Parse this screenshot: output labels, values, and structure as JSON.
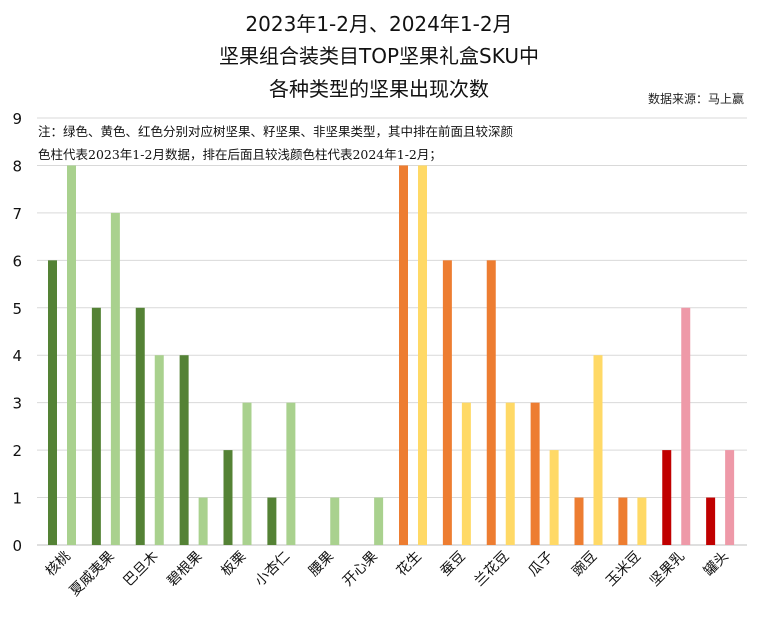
{
  "chart_data": {
    "type": "bar",
    "title": [
      "2023年1-2月、2024年1-2月",
      "坚果组合装类目TOP坚果礼盒SKU中",
      "各种类型的坚果出现次数"
    ],
    "source": "数据来源：马上赢",
    "note": [
      "注：绿色、黄色、红色分别对应树坚果、籽坚果、非坚果类型，其中排在前面且较深颜",
      "色柱代表2023年1-2月数据，排在后面且较浅颜色柱代表2024年1-2月；"
    ],
    "categories": [
      "核桃",
      "夏威夷果",
      "巴旦木",
      "碧根果",
      "板栗",
      "小杏仁",
      "腰果",
      "开心果",
      "花生",
      "蚕豆",
      "兰花豆",
      "瓜子",
      "豌豆",
      "玉米豆",
      "坚果乳",
      "罐头"
    ],
    "series": [
      {
        "values": [
          6,
          5,
          5,
          4,
          2,
          1,
          0,
          0,
          8,
          6,
          6,
          3,
          1,
          1,
          2,
          1
        ]
      },
      {
        "values": [
          8,
          7,
          4,
          1,
          3,
          3,
          1,
          1,
          8,
          3,
          3,
          2,
          4,
          1,
          5,
          2
        ]
      }
    ],
    "colors": {
      "dark": [
        "#548235",
        "#548235",
        "#548235",
        "#548235",
        "#548235",
        "#548235",
        "#548235",
        "#548235",
        "#ED7D31",
        "#ED7D31",
        "#ED7D31",
        "#ED7D31",
        "#ED7D31",
        "#ED7D31",
        "#C00000",
        "#C00000"
      ],
      "light": [
        "#A9D18E",
        "#A9D18E",
        "#A9D18E",
        "#A9D18E",
        "#A9D18E",
        "#A9D18E",
        "#A9D18E",
        "#A9D18E",
        "#FFD966",
        "#FFD966",
        "#FFD966",
        "#FFD966",
        "#FFD966",
        "#FFD966",
        "#EE99A8",
        "#EE99A8"
      ]
    },
    "ylim": [
      0,
      9
    ],
    "yticks": [
      "0",
      "1",
      "2",
      "3",
      "4",
      "5",
      "6",
      "7",
      "8",
      "9"
    ],
    "grid": true
  }
}
